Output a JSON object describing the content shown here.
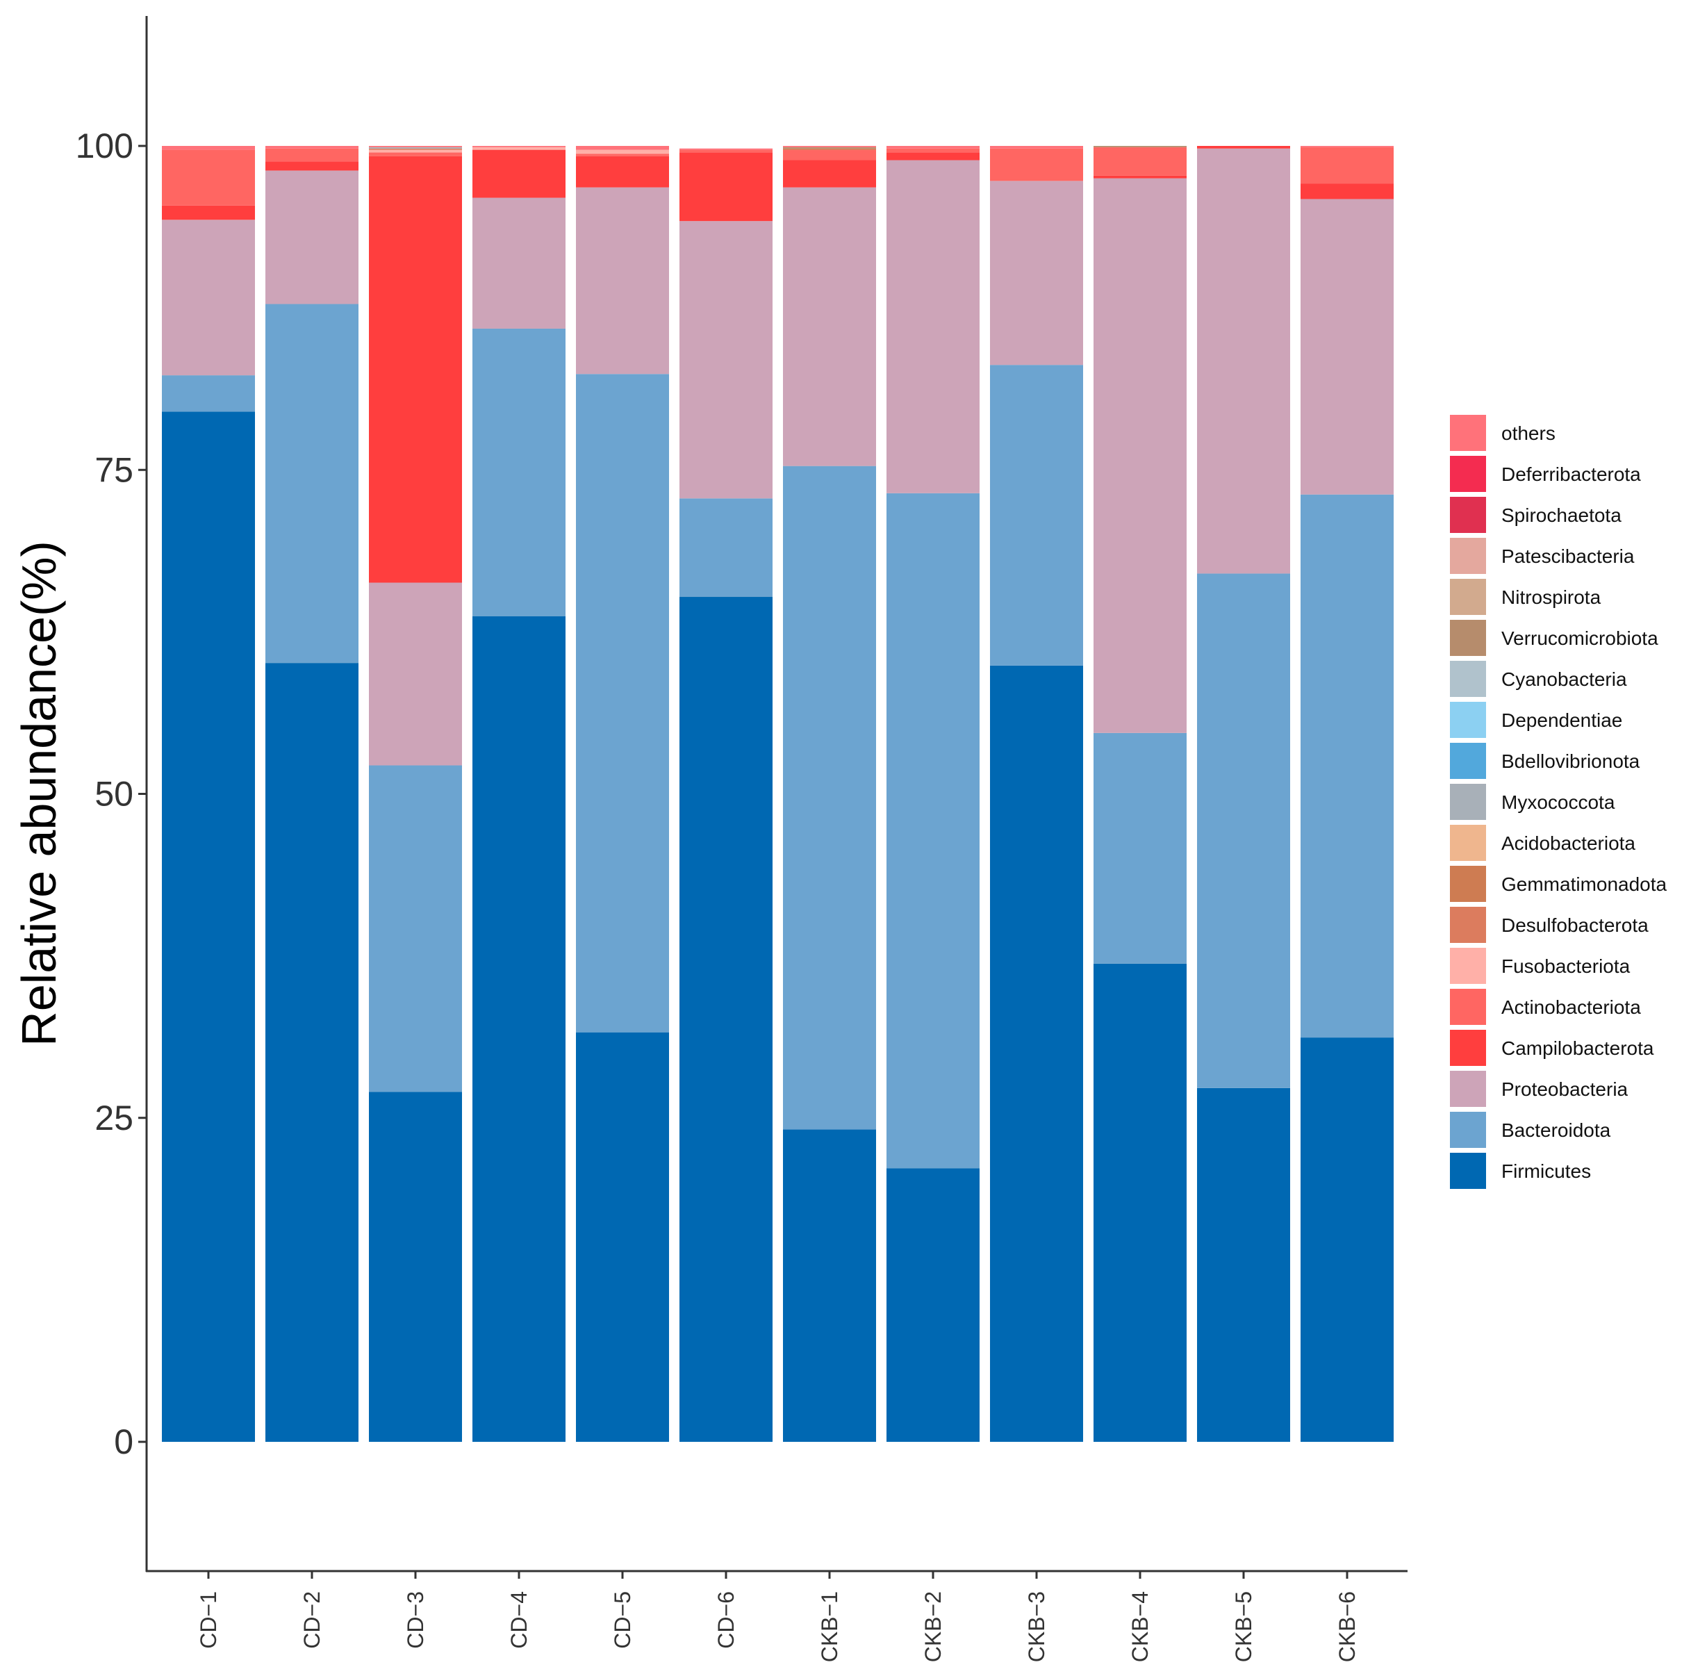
{
  "chart_data": {
    "type": "bar",
    "stacked": true,
    "title": "",
    "xlabel": "",
    "ylabel": "Relative abundance(%)",
    "ylim": [
      -10,
      110
    ],
    "yticks": [
      0,
      25,
      50,
      75,
      100
    ],
    "grid": false,
    "legend_position": "right",
    "categories": [
      "CD−1",
      "CD−2",
      "CD−3",
      "CD−4",
      "CD−5",
      "CD−6",
      "CKB−1",
      "CKB−2",
      "CKB−3",
      "CKB−4",
      "CKB−5",
      "CKB−6"
    ],
    "series": [
      {
        "name": "Firmicutes",
        "color": "#0068B2",
        "values": [
          79.5,
          60.1,
          27.0,
          63.7,
          31.6,
          65.2,
          24.1,
          21.1,
          59.9,
          36.9,
          27.3,
          31.2
        ]
      },
      {
        "name": "Bacteroidota",
        "color": "#6CA4D0",
        "values": [
          2.8,
          27.7,
          25.2,
          22.2,
          50.8,
          7.6,
          51.2,
          52.1,
          23.2,
          17.8,
          39.7,
          41.9
        ]
      },
      {
        "name": "Proteobacteria",
        "color": "#CDA4B8",
        "values": [
          12.0,
          10.3,
          14.1,
          10.1,
          14.4,
          21.4,
          21.5,
          25.7,
          14.2,
          42.8,
          32.8,
          22.8
        ]
      },
      {
        "name": "Campilobacterota",
        "color": "#FF3E3E",
        "values": [
          1.1,
          0.7,
          32.9,
          3.7,
          2.4,
          5.3,
          2.1,
          0.6,
          0.0,
          0.2,
          0.2,
          1.2
        ]
      },
      {
        "name": "Actinobacteriota",
        "color": "#FF6662",
        "values": [
          4.3,
          1.0,
          0.3,
          0.0,
          0.2,
          0.2,
          0.8,
          0.3,
          2.5,
          2.2,
          0.0,
          2.8
        ]
      },
      {
        "name": "Fusobacteriota",
        "color": "#FFB0A8",
        "values": [
          0.0,
          0.0,
          0.2,
          0.2,
          0.3,
          0.0,
          0.0,
          0.0,
          0.0,
          0.0,
          0.0,
          0.0
        ]
      },
      {
        "name": "Desulfobacterota",
        "color": "#DC7C5E",
        "values": [
          0.0,
          0.0,
          0.1,
          0.0,
          0.0,
          0.0,
          0.0,
          0.0,
          0.0,
          0.0,
          0.0,
          0.0
        ]
      },
      {
        "name": "Gemmatimonadota",
        "color": "#CE7C52",
        "values": [
          0.0,
          0.0,
          0.0,
          0.0,
          0.0,
          0.0,
          0.1,
          0.0,
          0.0,
          0.0,
          0.0,
          0.0
        ]
      },
      {
        "name": "Acidobacteriota",
        "color": "#EFB68E",
        "values": [
          0.0,
          0.0,
          0.0,
          0.0,
          0.0,
          0.0,
          0.0,
          0.0,
          0.0,
          0.0,
          0.0,
          0.0
        ]
      },
      {
        "name": "Myxococcota",
        "color": "#A8B0B8",
        "values": [
          0.0,
          0.0,
          0.1,
          0.0,
          0.0,
          0.0,
          0.0,
          0.0,
          0.0,
          0.0,
          0.0,
          0.0
        ]
      },
      {
        "name": "Bdellovibrionota",
        "color": "#52A8DC",
        "values": [
          0,
          0,
          0,
          0,
          0,
          0,
          0,
          0,
          0,
          0,
          0,
          0
        ]
      },
      {
        "name": "Dependentiae",
        "color": "#8CD0F2",
        "values": [
          0,
          0,
          0,
          0,
          0,
          0,
          0,
          0,
          0,
          0,
          0,
          0
        ]
      },
      {
        "name": "Cyanobacteria",
        "color": "#B0C2CC",
        "values": [
          0,
          0,
          0,
          0,
          0,
          0,
          0,
          0,
          0,
          0,
          0,
          0
        ]
      },
      {
        "name": "Verrucomicrobiota",
        "color": "#B68C6C",
        "values": [
          0.0,
          0.0,
          0.0,
          0.0,
          0.0,
          0.0,
          0.1,
          0.0,
          0.0,
          0.1,
          0.0,
          0.0
        ]
      },
      {
        "name": "Nitrospirota",
        "color": "#D2AA8E",
        "values": [
          0,
          0,
          0,
          0,
          0,
          0,
          0,
          0,
          0,
          0,
          0,
          0
        ]
      },
      {
        "name": "Patescibacteria",
        "color": "#E4A89E",
        "values": [
          0,
          0,
          0,
          0,
          0,
          0,
          0,
          0,
          0,
          0,
          0,
          0
        ]
      },
      {
        "name": "Spirochaetota",
        "color": "#E03050",
        "values": [
          0,
          0,
          0,
          0,
          0,
          0,
          0,
          0,
          0,
          0,
          0,
          0
        ]
      },
      {
        "name": "Deferribacterota",
        "color": "#F42C50",
        "values": [
          0,
          0,
          0,
          0,
          0,
          0,
          0,
          0,
          0,
          0,
          0,
          0
        ]
      },
      {
        "name": "others",
        "color": "#FF727A",
        "values": [
          0.3,
          0.2,
          0.1,
          0.1,
          0.3,
          0.1,
          0.1,
          0.2,
          0.2,
          0.0,
          0.0,
          0.1
        ]
      }
    ]
  }
}
